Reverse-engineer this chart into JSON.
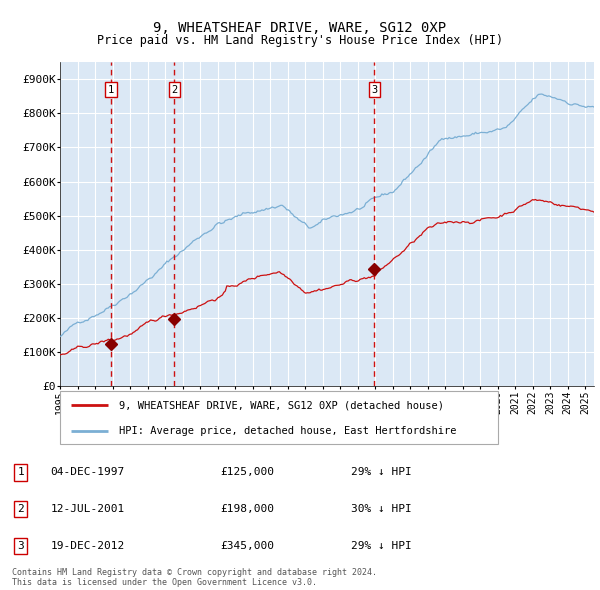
{
  "title": "9, WHEATSHEAF DRIVE, WARE, SG12 0XP",
  "subtitle": "Price paid vs. HM Land Registry's House Price Index (HPI)",
  "sale_dates_num": [
    1997.92,
    2001.53,
    2012.96
  ],
  "sale_prices": [
    125000,
    198000,
    345000
  ],
  "sale_labels": [
    "1",
    "2",
    "3"
  ],
  "sale_date_strings": [
    "04-DEC-1997",
    "12-JUL-2001",
    "19-DEC-2012"
  ],
  "sale_price_strings": [
    "£125,000",
    "£198,000",
    "£345,000"
  ],
  "sale_hpi_strings": [
    "29% ↓ HPI",
    "30% ↓ HPI",
    "29% ↓ HPI"
  ],
  "hpi_line_color": "#7bafd4",
  "price_line_color": "#cc1111",
  "marker_color": "#880000",
  "vline_color": "#cc1111",
  "plot_bg_color": "#dbe8f5",
  "grid_color": "#ffffff",
  "legend_label_price": "9, WHEATSHEAF DRIVE, WARE, SG12 0XP (detached house)",
  "legend_label_hpi": "HPI: Average price, detached house, East Hertfordshire",
  "footer": "Contains HM Land Registry data © Crown copyright and database right 2024.\nThis data is licensed under the Open Government Licence v3.0.",
  "ylim": [
    0,
    950000
  ],
  "xlim_start": 1995.0,
  "xlim_end": 2025.5,
  "yticks": [
    0,
    100000,
    200000,
    300000,
    400000,
    500000,
    600000,
    700000,
    800000,
    900000
  ],
  "ytick_labels": [
    "£0",
    "£100K",
    "£200K",
    "£300K",
    "£400K",
    "£500K",
    "£600K",
    "£700K",
    "£800K",
    "£900K"
  ],
  "xticks": [
    1995,
    1996,
    1997,
    1998,
    1999,
    2000,
    2001,
    2002,
    2003,
    2004,
    2005,
    2006,
    2007,
    2008,
    2009,
    2010,
    2011,
    2012,
    2013,
    2014,
    2015,
    2016,
    2017,
    2018,
    2019,
    2020,
    2021,
    2022,
    2023,
    2024,
    2025
  ]
}
